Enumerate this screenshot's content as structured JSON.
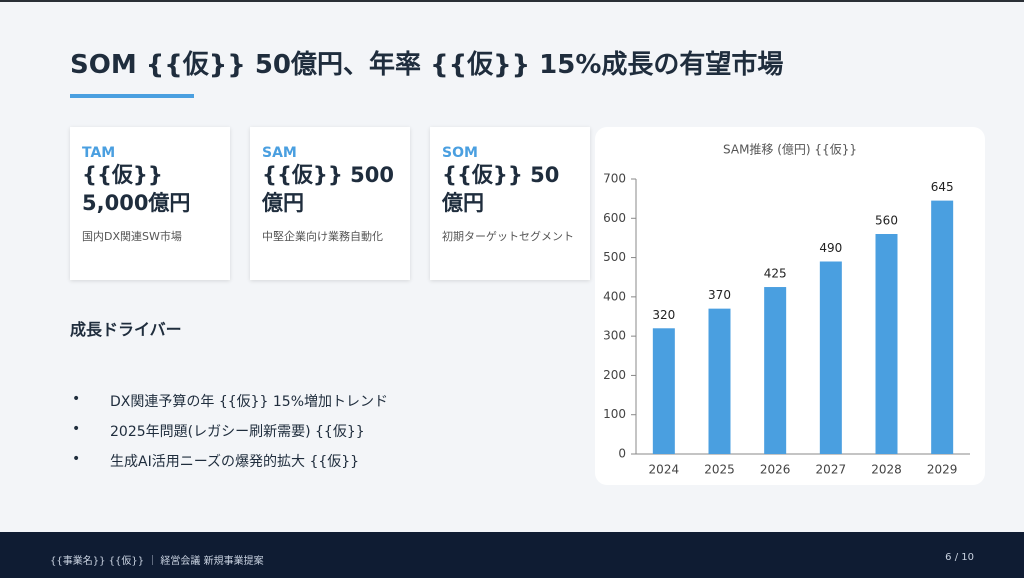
{
  "title": "SOM {{仮}} 50億円、年率 {{仮}} 15%成長の有望市場",
  "cards": [
    {
      "label": "TAM",
      "value": "{{仮}} 5,000億円",
      "description": "国内DX関連SW市場"
    },
    {
      "label": "SAM",
      "value": "{{仮}} 500億円",
      "description": "中堅企業向け業務自動化"
    },
    {
      "label": "SOM",
      "value": "{{仮}} 50億円",
      "description": "初期ターゲットセグメント"
    }
  ],
  "drivers": {
    "heading": "成長ドライバー",
    "items": [
      "DX関連予算の年 {{仮}} 15%増加トレンド",
      "2025年問題(レガシー刷新需要) {{仮}}",
      "生成AI活用ニーズの爆発的拡大 {{仮}}"
    ]
  },
  "chart_data": {
    "type": "bar",
    "title": "SAM推移 (億円) {{仮}}",
    "categories": [
      "2024",
      "2025",
      "2026",
      "2027",
      "2028",
      "2029"
    ],
    "values": [
      320,
      370,
      425,
      490,
      560,
      645
    ],
    "color": "#4a9fe0",
    "ylim": [
      0,
      700
    ],
    "yticks": [
      0,
      100,
      200,
      300,
      400,
      500,
      600,
      700
    ],
    "grid": false
  },
  "footer": {
    "left": "{{事業名}} {{仮}} ｜ 経営会議 新規事業提案",
    "page": "6 / 10"
  }
}
